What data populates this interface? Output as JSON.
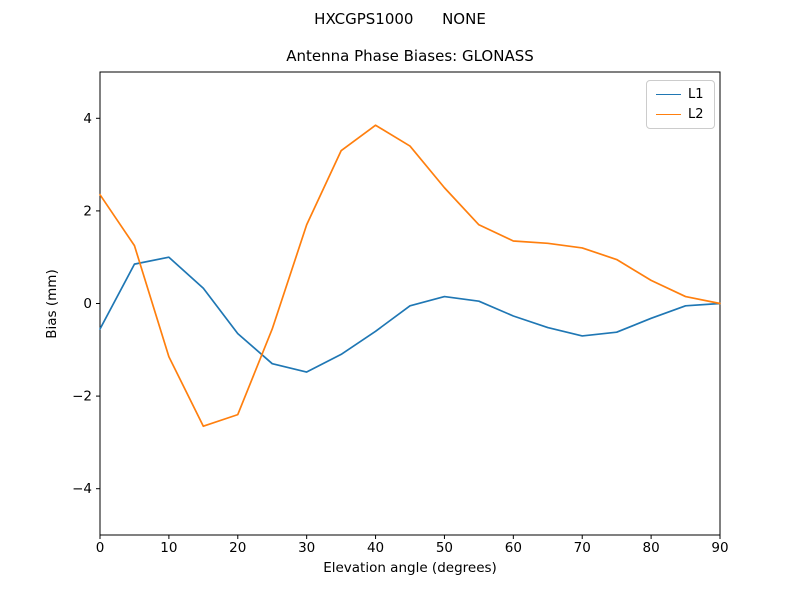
{
  "figure": {
    "suptitle": "HXCGPS1000      NONE",
    "background": "#ffffff"
  },
  "chart_data": {
    "type": "line",
    "title": "Antenna Phase Biases: GLONASS",
    "xlabel": "Elevation angle (degrees)",
    "ylabel": "Bias (mm)",
    "xlim": [
      0,
      90
    ],
    "ylim": [
      -5,
      5
    ],
    "xticks": [
      0,
      10,
      20,
      30,
      40,
      50,
      60,
      70,
      80,
      90
    ],
    "yticks": [
      -4,
      -2,
      0,
      2,
      4
    ],
    "grid": false,
    "legend_position": "upper right",
    "x": [
      0,
      5,
      10,
      15,
      20,
      25,
      30,
      35,
      40,
      45,
      50,
      55,
      60,
      65,
      70,
      75,
      80,
      85,
      90
    ],
    "series": [
      {
        "name": "L1",
        "color": "#1f77b4",
        "values": [
          -0.55,
          0.85,
          1.0,
          0.33,
          -0.65,
          -1.3,
          -1.48,
          -1.1,
          -0.6,
          -0.05,
          0.15,
          0.05,
          -0.27,
          -0.52,
          -0.7,
          -0.62,
          -0.32,
          -0.05,
          0.0
        ]
      },
      {
        "name": "L2",
        "color": "#ff7f0e",
        "values": [
          2.35,
          1.25,
          -1.15,
          -2.65,
          -2.4,
          -0.55,
          1.7,
          3.3,
          3.85,
          3.4,
          2.5,
          1.7,
          1.35,
          1.3,
          1.2,
          0.95,
          0.5,
          0.15,
          0.0
        ]
      }
    ]
  }
}
